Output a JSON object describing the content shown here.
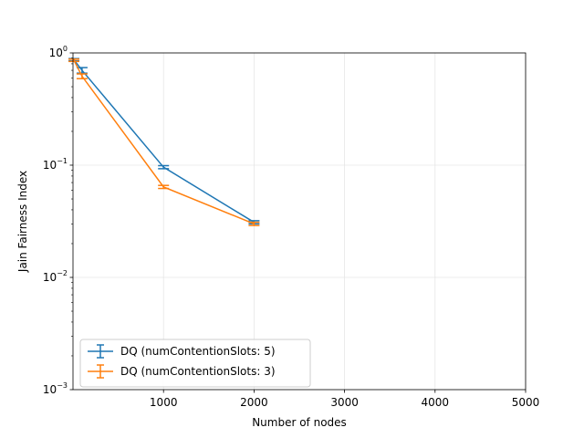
{
  "chart_data": {
    "type": "line",
    "title": "",
    "xlabel": "Number of nodes",
    "ylabel": "Jain Fairness Index",
    "xlim": [
      0,
      5000
    ],
    "ylim": [
      0.001,
      1
    ],
    "yscale": "log",
    "grid": true,
    "legend_position": "lower-left",
    "x_ticks": [
      {
        "value": 1000,
        "label": "1000"
      },
      {
        "value": 2000,
        "label": "2000"
      },
      {
        "value": 3000,
        "label": "3000"
      },
      {
        "value": 4000,
        "label": "4000"
      },
      {
        "value": 5000,
        "label": "5000"
      }
    ],
    "y_ticks": [
      {
        "value": 0.001,
        "base": "10",
        "exp": "−3"
      },
      {
        "value": 0.01,
        "base": "10",
        "exp": "−2"
      },
      {
        "value": 0.1,
        "base": "10",
        "exp": "−1"
      },
      {
        "value": 1,
        "base": "10",
        "exp": "0"
      }
    ],
    "series": [
      {
        "name": "DQ (numContentionSlots: 5)",
        "color": "#1f77b4",
        "x": [
          10,
          100,
          1000,
          2000
        ],
        "y": [
          0.87,
          0.7,
          0.096,
          0.031
        ],
        "yerr": [
          0.02,
          0.04,
          0.003,
          0.001
        ]
      },
      {
        "name": "DQ (numContentionSlots: 3)",
        "color": "#ff7f0e",
        "x": [
          10,
          100,
          1000,
          2000
        ],
        "y": [
          0.86,
          0.62,
          0.064,
          0.03
        ],
        "yerr": [
          0.02,
          0.03,
          0.002,
          0.001
        ]
      }
    ]
  }
}
